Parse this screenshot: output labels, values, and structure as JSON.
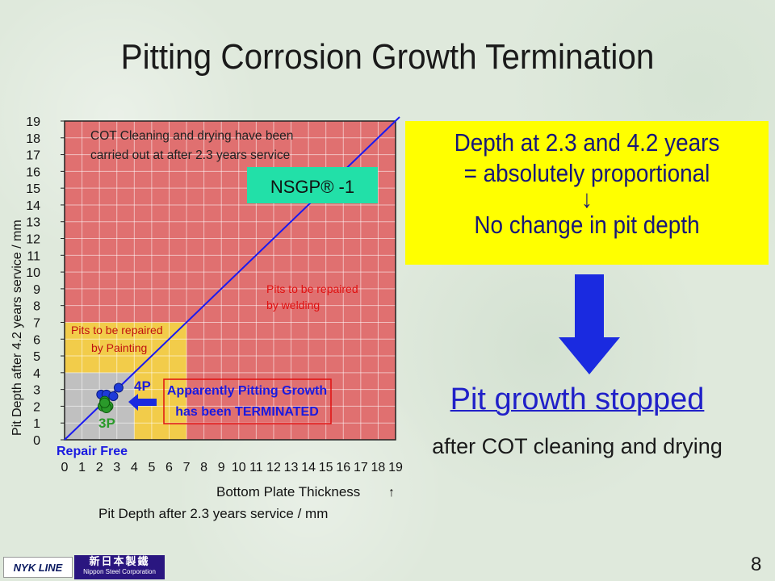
{
  "title": "Pitting Corrosion Growth Termination",
  "chart_data": {
    "type": "scatter",
    "x": {
      "label": "Pit Depth after 2.3 years service / mm",
      "label2": "Bottom Plate Thickness",
      "label2_symbol": "↑",
      "range": [
        0,
        19
      ],
      "ticks": [
        "0",
        "1",
        "2",
        "3",
        "4",
        "5",
        "6",
        "7",
        "8",
        "9",
        "10",
        "11",
        "12",
        "13",
        "14",
        "15",
        "16",
        "17",
        "18",
        "19"
      ]
    },
    "y": {
      "label": "Pit Depth after 4.2 years service / mm",
      "range": [
        0,
        19
      ],
      "ticks": [
        "0",
        "1",
        "2",
        "3",
        "4",
        "5",
        "6",
        "7",
        "8",
        "9",
        "10",
        "11",
        "12",
        "13",
        "14",
        "15",
        "16",
        "17",
        "18",
        "19"
      ]
    },
    "points": [
      {
        "x": 2.1,
        "y": 2.7
      },
      {
        "x": 2.4,
        "y": 2.7
      },
      {
        "x": 3.1,
        "y": 3.1
      },
      {
        "x": 2.8,
        "y": 2.6
      },
      {
        "x": 2.3,
        "y": 2.3
      },
      {
        "x": 2.2,
        "y": 2.0
      },
      {
        "x": 2.5,
        "y": 2.0
      },
      {
        "x": 2.4,
        "y": 1.9
      },
      {
        "x": 2.3,
        "y": 2.2
      }
    ],
    "regions": [
      {
        "name": "repair-free",
        "xmax": 4,
        "ymax": 4,
        "color": "#c0c0c0"
      },
      {
        "name": "paint",
        "xmax": 7,
        "ymax": 7,
        "color": "#f2cc4a",
        "label_lines": [
          "Pits to be repaired",
          "by Painting"
        ]
      },
      {
        "name": "weld",
        "xmax": 19,
        "ymax": 19,
        "color": "#e07070",
        "label_lines": [
          "Pits to be repaired",
          "by welding"
        ]
      }
    ],
    "reference_line": {
      "from": [
        0,
        0
      ],
      "to": [
        19,
        19
      ],
      "color": "#1a1af0"
    },
    "annotations": {
      "cot_note": [
        "COT Cleaning and drying have been",
        "carried out at after 2.3 years service"
      ],
      "nsgp": "NSGP® -1",
      "terminated": [
        "Apparently Pitting Growth",
        "has been TERMINATED"
      ],
      "label_4p": "4P",
      "label_3p": "3P",
      "repair_free": "Repair Free"
    },
    "colors": {
      "weld": "#e07070",
      "paint": "#f2cc4a",
      "repair_free": "#c0c0c0",
      "nsgp_box": "#22e0a8",
      "points_blue": "#1e3ad8",
      "points_green": "#2a9a2a",
      "arrow": "#1a2ae0",
      "label_red": "#e01010",
      "label_blue": "#1a1ae0"
    }
  },
  "side": {
    "yellow_lines": [
      "Depth at 2.3 and 4.2 years",
      "= absolutely proportional",
      "↓",
      "No change in pit depth"
    ],
    "pit_growth": "Pit growth stopped",
    "after_cot": "after COT cleaning and drying"
  },
  "page_number": "8",
  "logos": {
    "nyk": "NYK LINE",
    "nsc_kanji": "新日本製鐵",
    "nsc_en": "Nippon Steel Corporation"
  }
}
